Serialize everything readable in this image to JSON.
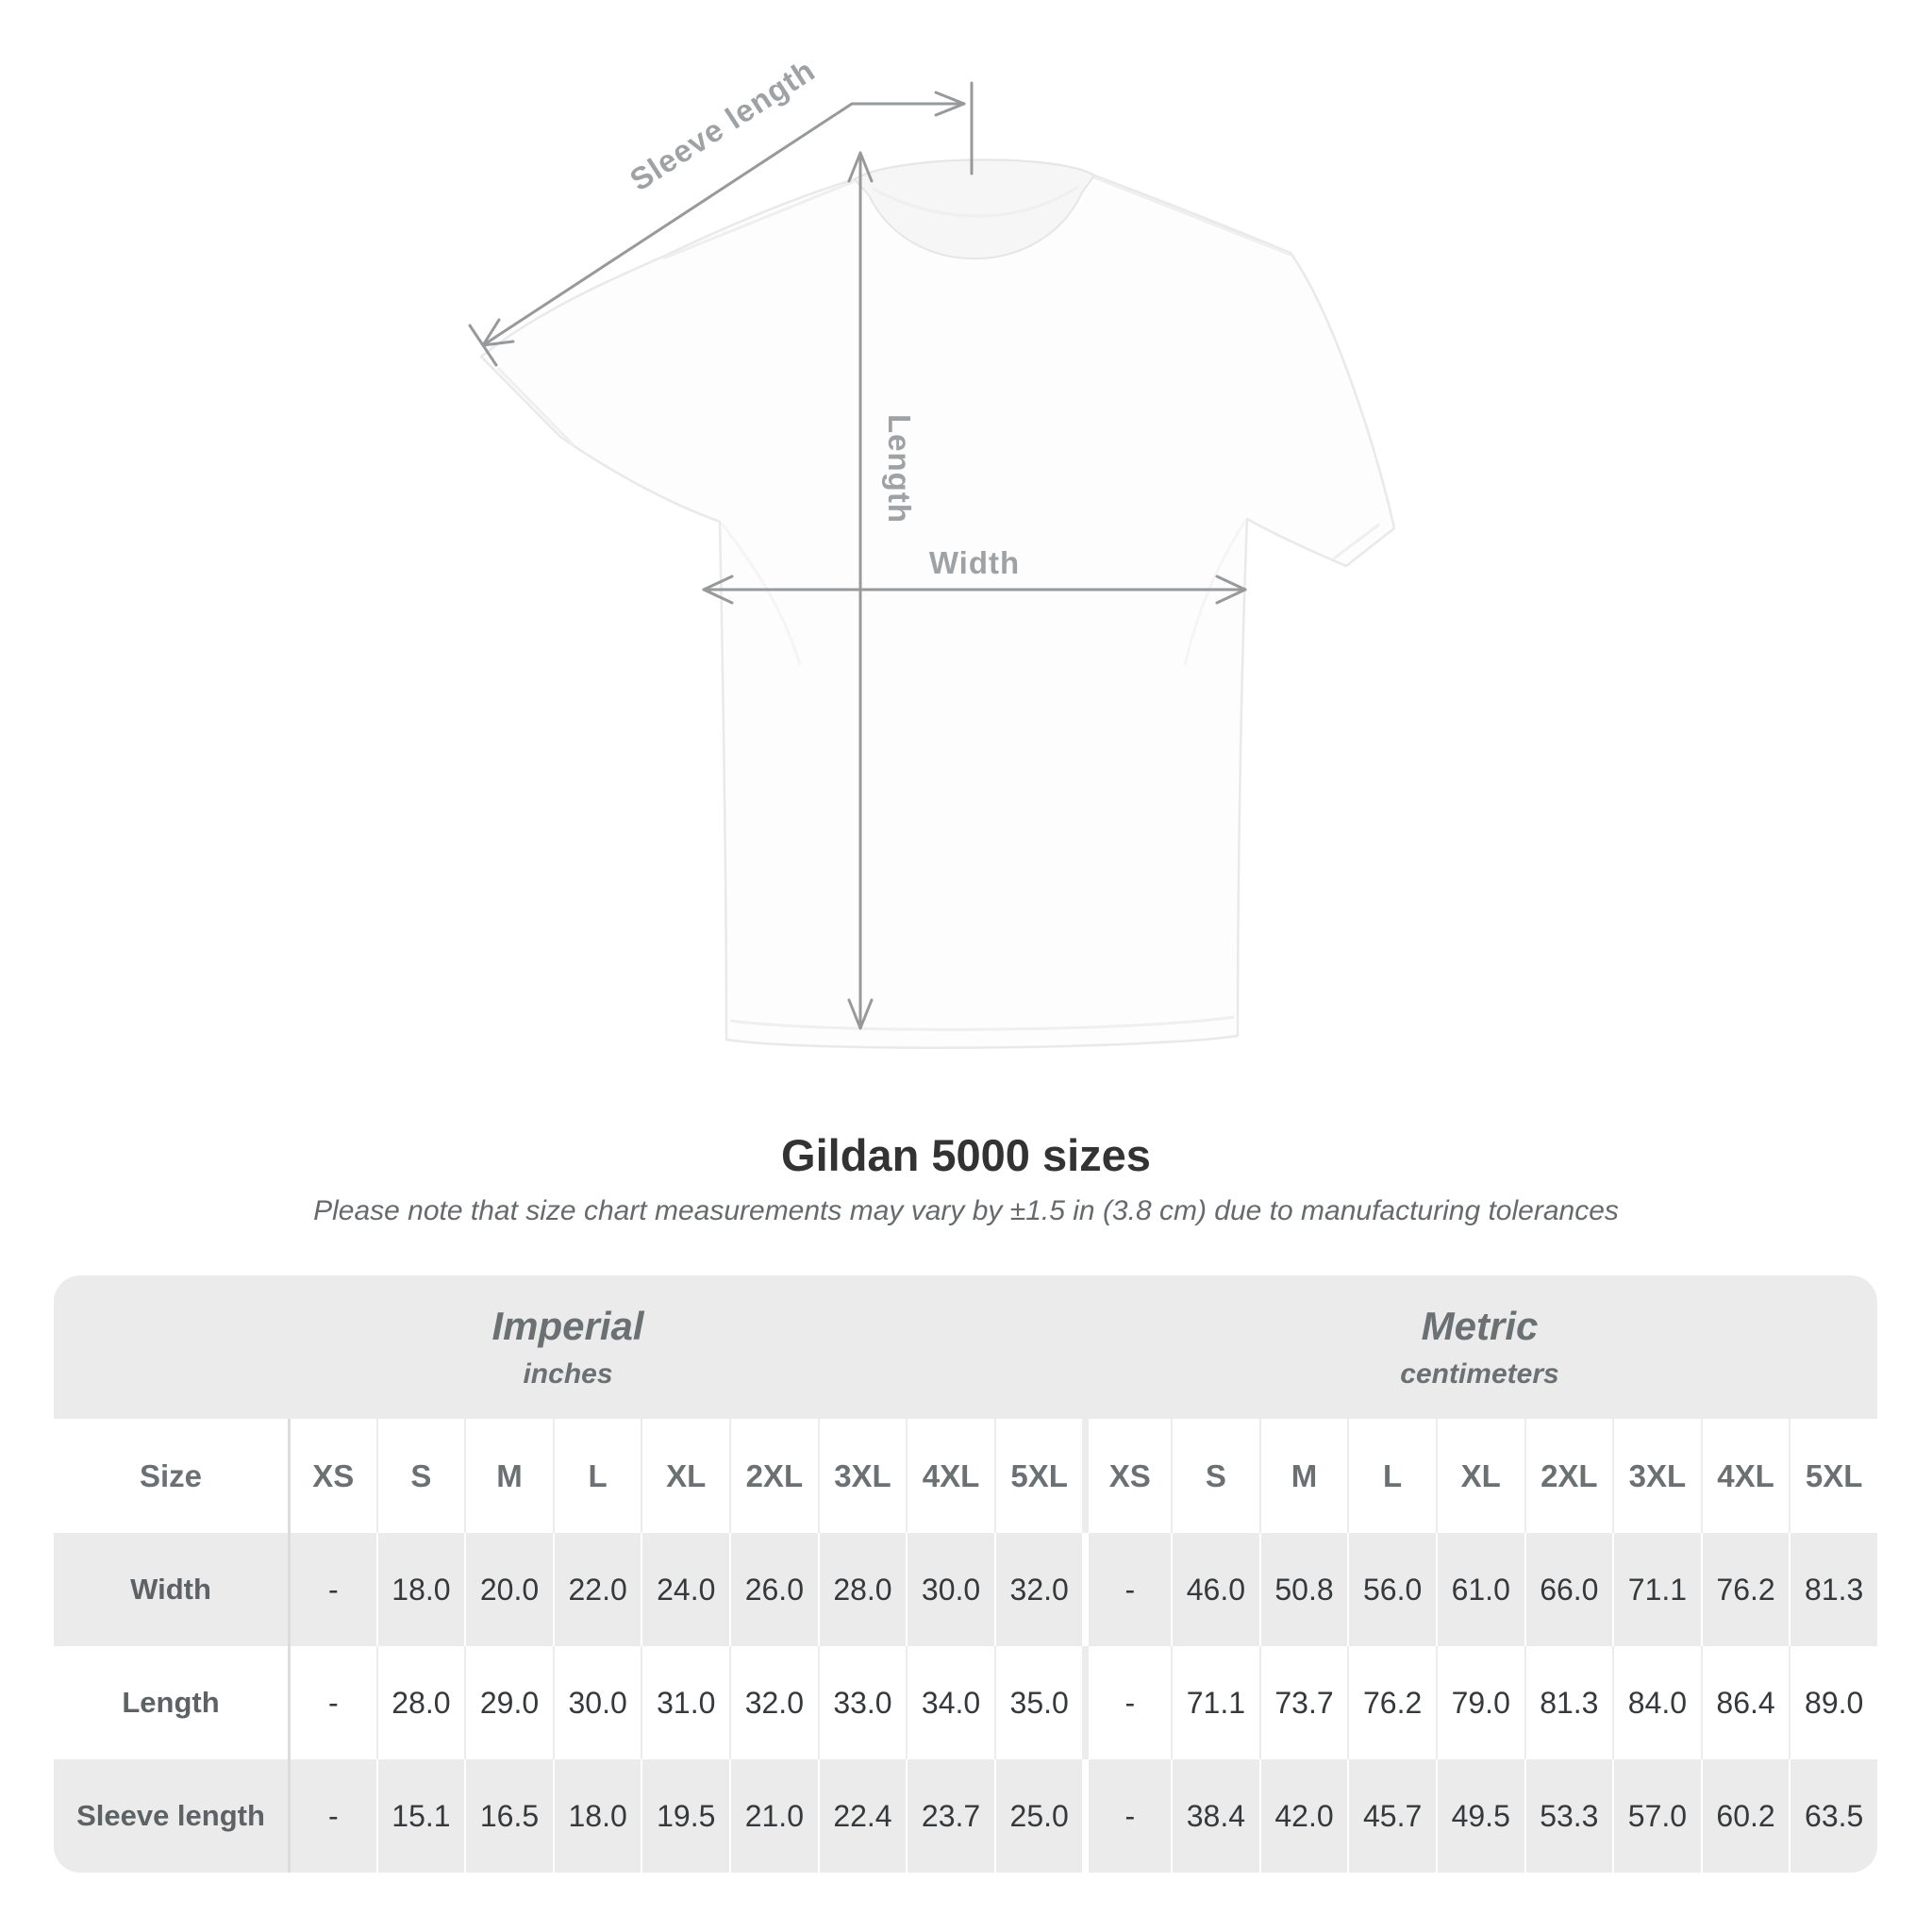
{
  "diagram": {
    "labels": {
      "sleeve_length": "Sleeve length",
      "length": "Length",
      "width": "Width"
    }
  },
  "header": {
    "title": "Gildan 5000 sizes",
    "subtitle": "Please note that size chart measurements may vary by ±1.5 in (3.8 cm) due to manufacturing tolerances"
  },
  "table": {
    "size_header_label": "Size",
    "unit_groups": [
      {
        "name": "Imperial",
        "unit": "inches"
      },
      {
        "name": "Metric",
        "unit": "centimeters"
      }
    ],
    "sizes": [
      "XS",
      "S",
      "M",
      "L",
      "XL",
      "2XL",
      "3XL",
      "4XL",
      "5XL"
    ],
    "rows": [
      {
        "label": "Width",
        "imperial": [
          "-",
          "18.0",
          "20.0",
          "22.0",
          "24.0",
          "26.0",
          "28.0",
          "30.0",
          "32.0"
        ],
        "metric": [
          "-",
          "46.0",
          "50.8",
          "56.0",
          "61.0",
          "66.0",
          "71.1",
          "76.2",
          "81.3"
        ]
      },
      {
        "label": "Length",
        "imperial": [
          "-",
          "28.0",
          "29.0",
          "30.0",
          "31.0",
          "32.0",
          "33.0",
          "34.0",
          "35.0"
        ],
        "metric": [
          "-",
          "71.1",
          "73.7",
          "76.2",
          "79.0",
          "81.3",
          "84.0",
          "86.4",
          "89.0"
        ]
      },
      {
        "label": "Sleeve length",
        "imperial": [
          "-",
          "15.1",
          "16.5",
          "18.0",
          "19.5",
          "21.0",
          "22.4",
          "23.7",
          "25.0"
        ],
        "metric": [
          "-",
          "38.4",
          "42.0",
          "45.7",
          "49.5",
          "53.3",
          "57.0",
          "60.2",
          "63.5"
        ]
      }
    ]
  },
  "chart_data": {
    "type": "table",
    "title": "Gildan 5000 sizes",
    "columns": [
      "Size",
      "XS",
      "S",
      "M",
      "L",
      "XL",
      "2XL",
      "3XL",
      "4XL",
      "5XL"
    ],
    "imperial_unit": "inches",
    "metric_unit": "centimeters",
    "imperial_rows": [
      [
        "Width",
        null,
        18.0,
        20.0,
        22.0,
        24.0,
        26.0,
        28.0,
        30.0,
        32.0
      ],
      [
        "Length",
        null,
        28.0,
        29.0,
        30.0,
        31.0,
        32.0,
        33.0,
        34.0,
        35.0
      ],
      [
        "Sleeve length",
        null,
        15.1,
        16.5,
        18.0,
        19.5,
        21.0,
        22.4,
        23.7,
        25.0
      ]
    ],
    "metric_rows": [
      [
        "Width",
        null,
        46.0,
        50.8,
        56.0,
        61.0,
        66.0,
        71.1,
        76.2,
        81.3
      ],
      [
        "Length",
        null,
        71.1,
        73.7,
        76.2,
        79.0,
        81.3,
        84.0,
        86.4,
        89.0
      ],
      [
        "Sleeve length",
        null,
        38.4,
        42.0,
        45.7,
        49.5,
        53.3,
        57.0,
        60.2,
        63.5
      ]
    ]
  },
  "colors": {
    "table_stripe": "#ebebeb",
    "diagram_line": "#97999b",
    "diagram_label": "#9ea2a4",
    "title_text": "#333333",
    "subtitle_text": "#666a6c",
    "header_text": "#6b7073",
    "value_text": "#36393b"
  }
}
